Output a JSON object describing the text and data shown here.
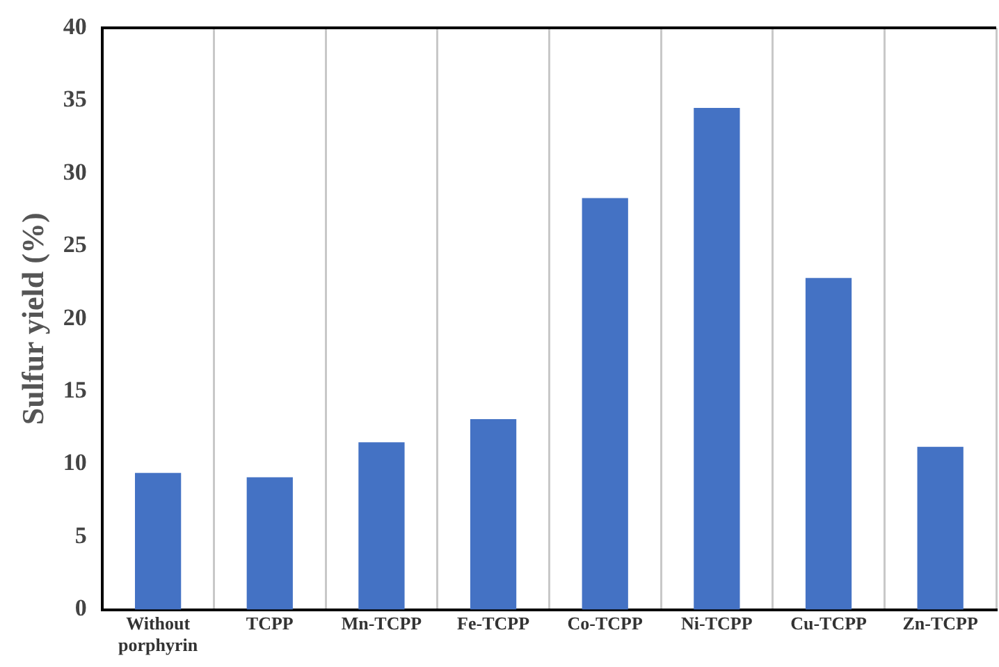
{
  "chart_data": {
    "type": "bar",
    "ylabel": "Sulfur yield (%)",
    "categories": [
      "Without porphyrin",
      "TCPP",
      "Mn-TCPP",
      "Fe-TCPP",
      "Co-TCPP",
      "Ni-TCPP",
      "Cu-TCPP",
      "Zn-TCPP"
    ],
    "values": [
      9.4,
      9.1,
      11.5,
      13.1,
      28.3,
      34.5,
      22.8,
      11.2
    ],
    "color": "#4472c4",
    "ylim": [
      0,
      40
    ],
    "yticks": [
      0,
      5,
      10,
      15,
      20,
      25,
      30,
      35,
      40
    ],
    "grid": "x",
    "legend": false
  }
}
